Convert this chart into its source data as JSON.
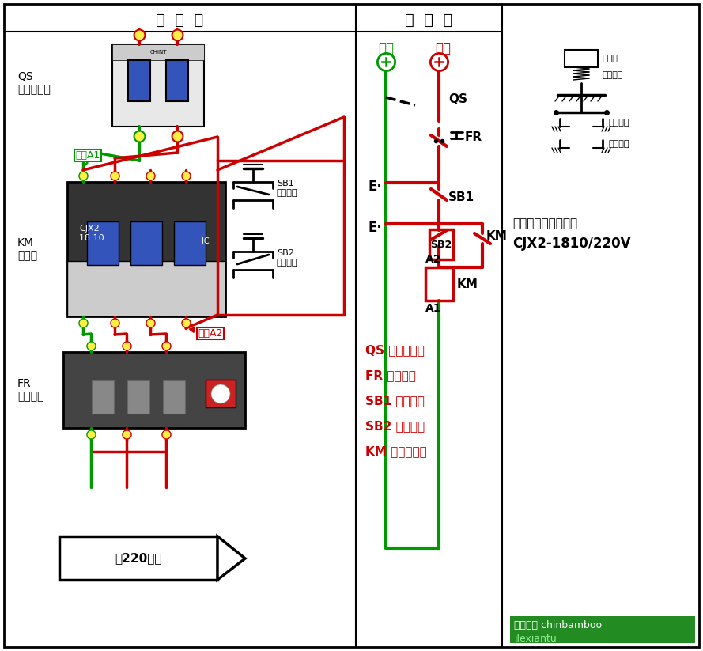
{
  "bg": "#ffffff",
  "red": "#cc0000",
  "green": "#009900",
  "black": "#000000",
  "blue_btn": "#3355bb",
  "gray_light": "#e8e8e8",
  "gray_mid": "#aaaaaa",
  "gray_dark": "#555555",
  "title_left": "实  物  图",
  "title_right": "原  理  图",
  "note1": "注：交流接触器选用",
  "note2": "CJX2-1810/220V",
  "legend": [
    "QS 空气断路器",
    "FR 热继电器",
    "SB1 停止按钮",
    "SB2 启动按钮",
    "KM 交流接触器"
  ],
  "label_QS": "QS\n空气断路器",
  "label_KM": "KM\n接触器",
  "label_FR": "FR\n热继电器",
  "label_A1": "线圈A1",
  "label_A2": "线圈A2",
  "label_SB1": "SB1\n停止按钮",
  "label_SB2": "SB2\n启动按钮",
  "label_motor": "接220电机",
  "label_zero": "零线",
  "label_live": "火线",
  "btn_cap": "按钮帽",
  "btn_spring": "复位弹簧",
  "btn_nc": "常闭触头",
  "btn_no": "常开触头",
  "watermark1": "百度知道 chinbamboo",
  "watermark2": "jlexiantu"
}
